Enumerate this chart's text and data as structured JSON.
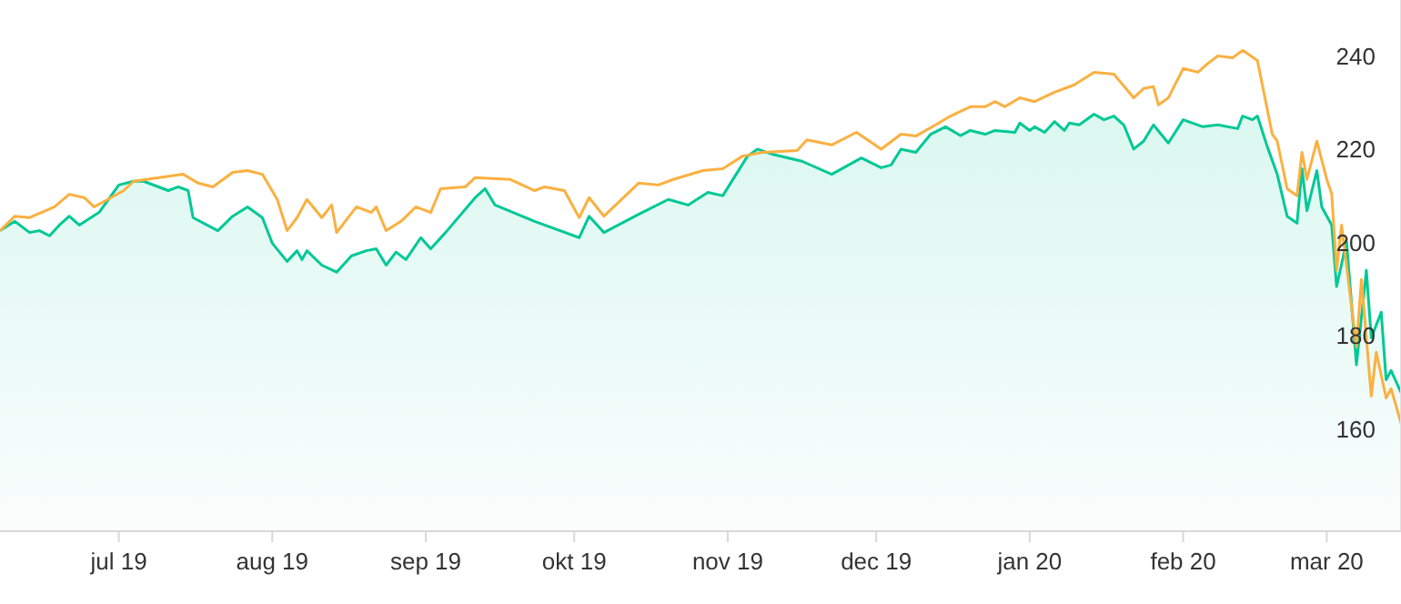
{
  "chart_data": {
    "type": "line",
    "xlim": [
      "2019-06-07",
      "2020-03-16"
    ],
    "ylim": [
      138,
      252
    ],
    "yticks": [
      160,
      180,
      200,
      220,
      240
    ],
    "xticks": [
      {
        "value": "2019-07-01",
        "label": "jul 19"
      },
      {
        "value": "2019-08-01",
        "label": "aug 19"
      },
      {
        "value": "2019-09-01",
        "label": "sep 19"
      },
      {
        "value": "2019-10-01",
        "label": "okt 19"
      },
      {
        "value": "2019-11-01",
        "label": "nov 19"
      },
      {
        "value": "2019-12-01",
        "label": "dec 19"
      },
      {
        "value": "2020-01-01",
        "label": "jan 20"
      },
      {
        "value": "2020-02-01",
        "label": "feb 20"
      },
      {
        "value": "2020-03-01",
        "label": "mar 20"
      }
    ],
    "grid": false,
    "legend": false,
    "marker": "none",
    "line_style": "solid",
    "series": [
      {
        "type": "area",
        "color": "#00c896",
        "x": [
          "2019-06-07",
          "2019-06-10",
          "2019-06-13",
          "2019-06-15",
          "2019-06-17",
          "2019-06-19",
          "2019-06-21",
          "2019-06-23",
          "2019-06-27",
          "2019-07-01",
          "2019-07-04",
          "2019-07-06",
          "2019-07-11",
          "2019-07-13",
          "2019-07-15",
          "2019-07-16",
          "2019-07-21",
          "2019-07-24",
          "2019-07-27",
          "2019-07-30",
          "2019-08-01",
          "2019-08-04",
          "2019-08-06",
          "2019-08-07",
          "2019-08-08",
          "2019-08-11",
          "2019-08-14",
          "2019-08-17",
          "2019-08-20",
          "2019-08-22",
          "2019-08-24",
          "2019-08-26",
          "2019-08-28",
          "2019-08-31",
          "2019-09-02",
          "2019-09-05",
          "2019-09-11",
          "2019-09-13",
          "2019-09-15",
          "2019-09-23",
          "2019-10-02",
          "2019-10-04",
          "2019-10-07",
          "2019-10-14",
          "2019-10-20",
          "2019-10-24",
          "2019-10-28",
          "2019-10-31",
          "2019-11-05",
          "2019-11-07",
          "2019-11-10",
          "2019-11-16",
          "2019-11-22",
          "2019-11-28",
          "2019-12-02",
          "2019-12-04",
          "2019-12-06",
          "2019-12-09",
          "2019-12-12",
          "2019-12-15",
          "2019-12-18",
          "2019-12-20",
          "2019-12-23",
          "2019-12-25",
          "2019-12-29",
          "2019-12-30",
          "2020-01-01",
          "2020-01-02",
          "2020-01-04",
          "2020-01-06",
          "2020-01-08",
          "2020-01-09",
          "2020-01-11",
          "2020-01-14",
          "2020-01-16",
          "2020-01-18",
          "2020-01-20",
          "2020-01-22",
          "2020-01-24",
          "2020-01-26",
          "2020-01-29",
          "2020-02-01",
          "2020-02-05",
          "2020-02-08",
          "2020-02-12",
          "2020-02-13",
          "2020-02-15",
          "2020-02-16",
          "2020-02-18",
          "2020-02-20",
          "2020-02-22",
          "2020-02-24",
          "2020-02-25",
          "2020-02-26",
          "2020-02-28",
          "2020-02-29",
          "2020-03-02",
          "2020-03-03",
          "2020-03-05",
          "2020-03-07",
          "2020-03-09",
          "2020-03-10",
          "2020-03-12",
          "2020-03-13",
          "2020-03-14",
          "2020-03-16"
        ],
        "values": [
          202.5,
          204.5,
          202.1,
          202.5,
          201.4,
          203.7,
          205.6,
          203.7,
          206.4,
          212.3,
          213.1,
          213.1,
          211.1,
          211.9,
          211.1,
          205.3,
          202.5,
          205.6,
          207.6,
          205.3,
          199.8,
          195.9,
          198.2,
          196.3,
          198.2,
          195.1,
          193.6,
          197.1,
          198.2,
          198.6,
          195.1,
          197.9,
          196.3,
          201,
          198.6,
          202.1,
          209.6,
          211.5,
          208,
          204.5,
          201,
          205.6,
          202.1,
          206,
          209.2,
          208,
          210.7,
          210,
          218.5,
          220,
          218.9,
          217.4,
          214.6,
          218.1,
          216,
          216.6,
          220,
          219.3,
          223.2,
          224.8,
          222.9,
          224,
          223.2,
          224,
          223.6,
          225.6,
          224,
          224.8,
          223.6,
          225.9,
          224,
          225.6,
          225.2,
          227.5,
          226.3,
          227.1,
          225.2,
          220,
          221.7,
          225.2,
          221.3,
          226.3,
          224.8,
          225.2,
          224.4,
          227.1,
          226.3,
          227.1,
          220.5,
          214.6,
          205.6,
          204.1,
          215.8,
          206.8,
          215.4,
          207.6,
          203.7,
          190.5,
          200.2,
          173.7,
          194,
          179.5,
          185,
          170.5,
          172.5,
          167.8
        ]
      },
      {
        "type": "line",
        "color": "#fbb040",
        "x": [
          "2019-06-07",
          "2019-06-10",
          "2019-06-13",
          "2019-06-18",
          "2019-06-21",
          "2019-06-24",
          "2019-06-26",
          "2019-07-02",
          "2019-07-04",
          "2019-07-14",
          "2019-07-17",
          "2019-07-20",
          "2019-07-24",
          "2019-07-27",
          "2019-07-30",
          "2019-08-02",
          "2019-08-04",
          "2019-08-06",
          "2019-08-08",
          "2019-08-11",
          "2019-08-13",
          "2019-08-14",
          "2019-08-18",
          "2019-08-21",
          "2019-08-22",
          "2019-08-24",
          "2019-08-27",
          "2019-08-30",
          "2019-09-02",
          "2019-09-04",
          "2019-09-09",
          "2019-09-11",
          "2019-09-18",
          "2019-09-23",
          "2019-09-25",
          "2019-09-29",
          "2019-10-02",
          "2019-10-04",
          "2019-10-07",
          "2019-10-14",
          "2019-10-18",
          "2019-10-21",
          "2019-10-27",
          "2019-10-31",
          "2019-11-04",
          "2019-11-08",
          "2019-11-15",
          "2019-11-17",
          "2019-11-22",
          "2019-11-27",
          "2019-12-02",
          "2019-12-06",
          "2019-12-09",
          "2019-12-13",
          "2019-12-16",
          "2019-12-20",
          "2019-12-23",
          "2019-12-25",
          "2019-12-27",
          "2019-12-30",
          "2020-01-02",
          "2020-01-06",
          "2020-01-10",
          "2020-01-14",
          "2020-01-18",
          "2020-01-22",
          "2020-01-24",
          "2020-01-26",
          "2020-01-27",
          "2020-01-29",
          "2020-02-01",
          "2020-02-04",
          "2020-02-06",
          "2020-02-08",
          "2020-02-11",
          "2020-02-13",
          "2020-02-16",
          "2020-02-19",
          "2020-02-20",
          "2020-02-22",
          "2020-02-24",
          "2020-02-25",
          "2020-02-26",
          "2020-02-28",
          "2020-03-01",
          "2020-03-02",
          "2020-03-03",
          "2020-03-04",
          "2020-03-07",
          "2020-03-08",
          "2020-03-10",
          "2020-03-11",
          "2020-03-13",
          "2020-03-14",
          "2020-03-16"
        ],
        "values": [
          202.5,
          205.6,
          205.3,
          207.6,
          210.3,
          209.6,
          207.6,
          211.1,
          213.1,
          214.6,
          212.7,
          211.9,
          215,
          215.4,
          214.6,
          209.2,
          202.5,
          205.3,
          209.2,
          205.3,
          208,
          202.1,
          207.6,
          206.4,
          207.6,
          202.5,
          204.5,
          207.6,
          206.4,
          211.5,
          211.9,
          213.9,
          213.5,
          211.1,
          211.9,
          211.1,
          205.3,
          209.6,
          205.6,
          212.7,
          212.3,
          213.5,
          215.4,
          215.8,
          218.5,
          219.3,
          219.7,
          222,
          220.9,
          223.6,
          220,
          223.2,
          222.8,
          225.2,
          227.1,
          229.1,
          229.1,
          230.2,
          229.1,
          231,
          230.2,
          232.2,
          233.8,
          236.5,
          236.1,
          231,
          233,
          233.4,
          229.5,
          231,
          237.3,
          236.5,
          238.4,
          240,
          239.6,
          241.2,
          239,
          223.2,
          221.7,
          211.5,
          210,
          219.3,
          213.5,
          221.7,
          213.5,
          210.4,
          194,
          203.7,
          177.6,
          192,
          167,
          176.4,
          166.6,
          168.6,
          161.2
        ]
      }
    ]
  }
}
